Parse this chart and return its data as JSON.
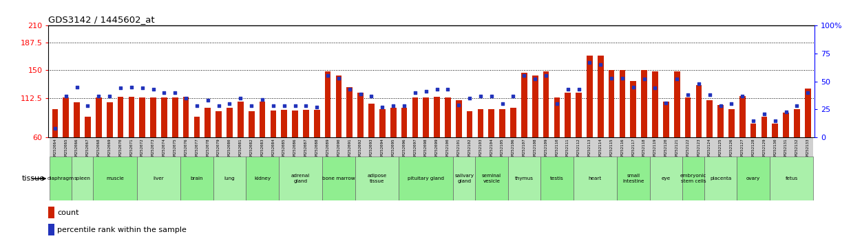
{
  "title": "GDS3142 / 1445602_at",
  "samples": [
    "GSM252064",
    "GSM252065",
    "GSM252066",
    "GSM252067",
    "GSM252068",
    "GSM252069",
    "GSM252070",
    "GSM252071",
    "GSM252072",
    "GSM252073",
    "GSM252074",
    "GSM252075",
    "GSM252076",
    "GSM252077",
    "GSM252078",
    "GSM252079",
    "GSM252080",
    "GSM252081",
    "GSM252082",
    "GSM252083",
    "GSM252084",
    "GSM252085",
    "GSM252086",
    "GSM252087",
    "GSM252088",
    "GSM252089",
    "GSM252090",
    "GSM252091",
    "GSM252092",
    "GSM252093",
    "GSM252094",
    "GSM252095",
    "GSM252096",
    "GSM252097",
    "GSM252098",
    "GSM252099",
    "GSM252100",
    "GSM252101",
    "GSM252102",
    "GSM252103",
    "GSM252104",
    "GSM252105",
    "GSM252106",
    "GSM252107",
    "GSM252108",
    "GSM252109",
    "GSM252110",
    "GSM252111",
    "GSM252112",
    "GSM252113",
    "GSM252114",
    "GSM252115",
    "GSM252116",
    "GSM252117",
    "GSM252118",
    "GSM252119",
    "GSM252120",
    "GSM252121",
    "GSM252122",
    "GSM252123",
    "GSM252124",
    "GSM252125",
    "GSM252126",
    "GSM252127",
    "GSM252128",
    "GSM252129",
    "GSM252130",
    "GSM252131",
    "GSM252132",
    "GSM252133"
  ],
  "bar_values": [
    98,
    113,
    107,
    88,
    113,
    107,
    114,
    114,
    113,
    113,
    113,
    113,
    114,
    88,
    100,
    95,
    100,
    108,
    95,
    108,
    96,
    97,
    96,
    97,
    97,
    148,
    143,
    127,
    120,
    105,
    98,
    100,
    100,
    113,
    113,
    114,
    113,
    110,
    95,
    98,
    98,
    98,
    100,
    147,
    143,
    148,
    113,
    120,
    120,
    170,
    170,
    150,
    150,
    136,
    150,
    148,
    108,
    148,
    113,
    130,
    110,
    103,
    98,
    115,
    78,
    88,
    78,
    93,
    98,
    125
  ],
  "dot_values_pct": [
    8,
    37,
    45,
    28,
    37,
    37,
    44,
    45,
    44,
    43,
    40,
    40,
    35,
    28,
    33,
    28,
    30,
    35,
    28,
    34,
    28,
    28,
    28,
    28,
    27,
    55,
    53,
    43,
    39,
    37,
    27,
    28,
    28,
    40,
    41,
    43,
    43,
    29,
    35,
    37,
    37,
    30,
    37,
    55,
    52,
    55,
    30,
    43,
    43,
    67,
    65,
    53,
    53,
    45,
    52,
    44,
    31,
    52,
    38,
    48,
    38,
    28,
    30,
    37,
    15,
    21,
    15,
    23,
    28,
    40
  ],
  "tissues_order": [
    "diaphragm",
    "spleen",
    "muscle",
    "liver",
    "brain",
    "lung",
    "kidney",
    "adrenal\ngland",
    "bone marrow",
    "adipose\ntissue",
    "pituitary gland",
    "salivary\ngland",
    "seminal\nvesicle",
    "thymus",
    "testis",
    "heart",
    "small\nintestine",
    "eye",
    "embryonic\nstem cells",
    "placenta",
    "ovary",
    "fetus"
  ],
  "tissues_indices": [
    [
      0,
      1
    ],
    [
      2,
      3
    ],
    [
      4,
      5,
      6,
      7
    ],
    [
      8,
      9,
      10,
      11
    ],
    [
      12,
      13,
      14
    ],
    [
      15,
      16,
      17
    ],
    [
      18,
      19,
      20
    ],
    [
      21,
      22,
      23,
      24
    ],
    [
      25,
      26,
      27
    ],
    [
      28,
      29,
      30,
      31
    ],
    [
      32,
      33,
      34,
      35,
      36
    ],
    [
      37,
      38
    ],
    [
      39,
      40,
      41
    ],
    [
      42,
      43,
      44
    ],
    [
      45,
      46,
      47
    ],
    [
      48,
      49,
      50,
      51
    ],
    [
      52,
      53,
      54
    ],
    [
      55,
      56,
      57
    ],
    [
      58,
      59
    ],
    [
      60,
      61,
      62
    ],
    [
      63,
      64,
      65
    ],
    [
      66,
      67,
      68,
      69
    ]
  ],
  "bar_color": "#cc2200",
  "dot_color": "#2233bb",
  "left_yticks": [
    60,
    112.5,
    150,
    187.5,
    210
  ],
  "left_yticklabels": [
    "60",
    "112.5",
    "150",
    "187.5",
    "210"
  ],
  "right_yticks": [
    0,
    25,
    50,
    75,
    100
  ],
  "right_yticklabels": [
    "0",
    "25",
    "50",
    "75",
    "100%"
  ],
  "ymin": 60,
  "ymax": 210,
  "hlines": [
    112.5,
    150,
    187.5
  ],
  "bg_color": "#ffffff",
  "tissue_green_light": "#90ee90",
  "tissue_green_dark": "#66cc66",
  "sample_label_bg": "#cccccc"
}
